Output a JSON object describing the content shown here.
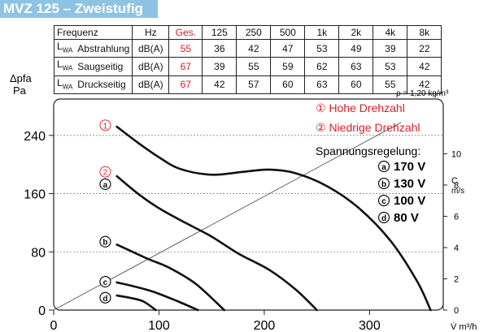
{
  "title": "MVZ 125 – Zweistufig",
  "spec_table": {
    "header": [
      "Frequenz",
      "Hz",
      "Ges.",
      "125",
      "250",
      "500",
      "1k",
      "2k",
      "4k",
      "8k"
    ],
    "rows": [
      {
        "lw": "L",
        "lw_sub": "WA",
        "name": "Abstrahlung",
        "unit": "dB(A)",
        "ges": "55",
        "values": [
          "36",
          "42",
          "47",
          "53",
          "49",
          "39",
          "22"
        ]
      },
      {
        "lw": "L",
        "lw_sub": "WA",
        "name": "Saugseitig",
        "unit": "dB(A)",
        "ges": "67",
        "values": [
          "39",
          "55",
          "59",
          "62",
          "63",
          "53",
          "42"
        ]
      },
      {
        "lw": "L",
        "lw_sub": "WA",
        "name": "Druckseitig",
        "unit": "dB(A)",
        "ges": "67",
        "values": [
          "42",
          "57",
          "60",
          "63",
          "60",
          "55",
          "42"
        ]
      }
    ]
  },
  "density_note": "ρ = 1,20 kg/m³",
  "legend": {
    "hohe": "① Hohe Drehzahl",
    "niedrige": "② Niedrige Drehzahl",
    "spannung": "Spannungsregelung:",
    "voltages": [
      {
        "mark": "a",
        "label": "170 V"
      },
      {
        "mark": "b",
        "label": "130 V"
      },
      {
        "mark": "c",
        "label": "100 V"
      },
      {
        "mark": "d",
        "label": "80 V"
      }
    ]
  },
  "chart_data": {
    "type": "line",
    "ylabel": "Δpfa\nPa",
    "xlabel": "V̇ m³/h",
    "y2label": "C\nm/s",
    "xlim": [
      0,
      370
    ],
    "ylim": [
      0,
      290
    ],
    "xticks": [
      0,
      100,
      200,
      300
    ],
    "yticks": [
      0,
      80,
      160,
      240
    ],
    "y2ticks": [
      0,
      2,
      4,
      6,
      8,
      10
    ],
    "y2lim": [
      0,
      13.5
    ],
    "series": [
      {
        "name": "1",
        "points": [
          [
            60,
            252
          ],
          [
            80,
            230
          ],
          [
            100,
            210
          ],
          [
            120,
            194
          ],
          [
            150,
            186
          ],
          [
            180,
            190
          ],
          [
            205,
            193
          ],
          [
            230,
            188
          ],
          [
            260,
            170
          ],
          [
            290,
            140
          ],
          [
            320,
            95
          ],
          [
            345,
            40
          ],
          [
            358,
            0
          ]
        ]
      },
      {
        "name": "2",
        "points": [
          [
            60,
            184
          ],
          [
            80,
            160
          ],
          [
            100,
            140
          ],
          [
            125,
            120
          ],
          [
            150,
            101
          ],
          [
            175,
            78
          ],
          [
            205,
            55
          ],
          [
            230,
            28
          ],
          [
            250,
            0
          ]
        ]
      },
      {
        "name": "b",
        "points": [
          [
            60,
            90
          ],
          [
            75,
            80
          ],
          [
            90,
            70
          ],
          [
            110,
            58
          ],
          [
            135,
            36
          ],
          [
            162,
            0
          ]
        ]
      },
      {
        "name": "c",
        "points": [
          [
            60,
            38
          ],
          [
            75,
            33
          ],
          [
            95,
            25
          ],
          [
            118,
            12
          ],
          [
            137,
            0
          ]
        ]
      },
      {
        "name": "d",
        "points": [
          [
            60,
            20
          ],
          [
            72,
            17
          ],
          [
            85,
            12
          ],
          [
            97,
            0
          ]
        ]
      }
    ],
    "velocity_line": [
      [
        0,
        0
      ],
      [
        330,
        12
      ]
    ],
    "curve_markers": [
      {
        "label": "1",
        "x": 49,
        "y": 254,
        "style": "red"
      },
      {
        "label": "2",
        "x": 49,
        "y": 190,
        "style": "red"
      },
      {
        "label": "a",
        "x": 49,
        "y": 173,
        "style": "black"
      },
      {
        "label": "b",
        "x": 49,
        "y": 94,
        "style": "black"
      },
      {
        "label": "c",
        "x": 49,
        "y": 39,
        "style": "black"
      },
      {
        "label": "d",
        "x": 49,
        "y": 17,
        "style": "black"
      }
    ]
  }
}
